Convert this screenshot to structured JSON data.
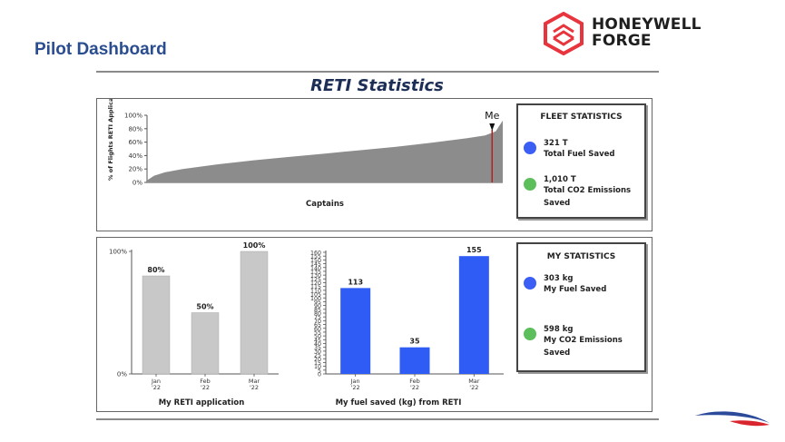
{
  "page": {
    "title": "Pilot Dashboard"
  },
  "brand": {
    "line1": "HONEYWELL",
    "line2": "FORGE",
    "accent_color": "#e8343c"
  },
  "section": {
    "title": "RETI Statistics"
  },
  "fleet_stats": {
    "heading": "FLEET STATISTICS",
    "items": [
      {
        "value": "321 T",
        "label": "Total Fuel Saved",
        "color": "#3b5ff5"
      },
      {
        "value": "1,010 T",
        "label": "Total CO2 Emissions",
        "label2": "Saved",
        "color": "#5cbf5c"
      }
    ]
  },
  "my_stats": {
    "heading": "MY STATISTICS",
    "items": [
      {
        "value": "303 kg",
        "label": "My Fuel Saved",
        "color": "#3b5ff5"
      },
      {
        "value": "598 kg",
        "label": "My CO2 Emissions",
        "label2": "Saved",
        "color": "#5cbf5c"
      }
    ]
  },
  "chart_data": [
    {
      "type": "area",
      "xlabel": "Captains",
      "ylabel": "% of Flights RETI Application",
      "y_ticks": [
        "0%",
        "20%",
        "40%",
        "60%",
        "80%",
        "100%"
      ],
      "ylim": [
        0,
        100
      ],
      "x": [
        0,
        0.02,
        0.05,
        0.1,
        0.2,
        0.3,
        0.4,
        0.5,
        0.6,
        0.7,
        0.8,
        0.9,
        0.95,
        0.98,
        1.0
      ],
      "values": [
        3,
        10,
        15,
        20,
        27,
        33,
        38,
        43,
        48,
        53,
        59,
        66,
        70,
        76,
        92
      ],
      "marker": {
        "label": "Me",
        "x": 0.97
      },
      "grid": false
    },
    {
      "type": "bar",
      "title": "My RETI application",
      "categories": [
        "Jan '22",
        "Feb '22",
        "Mar '22"
      ],
      "values": [
        80,
        50,
        100
      ],
      "labels": [
        "80%",
        "50%",
        "100%"
      ],
      "y_ticks": [
        "0%",
        "100%"
      ],
      "ylim": [
        0,
        100
      ],
      "color": "#c8c8c8"
    },
    {
      "type": "bar",
      "title": "My fuel saved (kg) from RETI",
      "categories": [
        "Jan '22",
        "Feb '22",
        "Mar '22"
      ],
      "values": [
        113,
        35,
        155
      ],
      "labels": [
        "113",
        "35",
        "155"
      ],
      "y_ticks": [
        "0",
        "5",
        "10",
        "15",
        "20",
        "25",
        "30",
        "35",
        "40",
        "45",
        "50",
        "55",
        "60",
        "65",
        "70",
        "75",
        "80",
        "85",
        "90",
        "95",
        "100",
        "105",
        "110",
        "115",
        "120",
        "125",
        "130",
        "135",
        "140",
        "145",
        "150",
        "155",
        "160"
      ],
      "ylim": [
        0,
        160
      ],
      "color": "#2f5cf5"
    }
  ]
}
